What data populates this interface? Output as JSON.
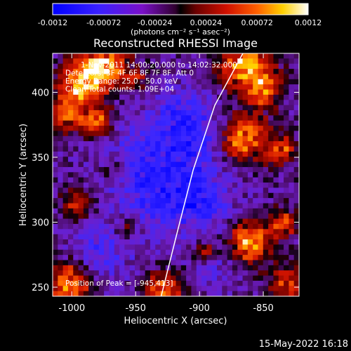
{
  "colorbar": {
    "tick_labels": [
      "-0.0012",
      "-0.00072",
      "-0.00024",
      "0.00024",
      "0.00072",
      "0.0012"
    ],
    "units_label": "(photons cm⁻² s⁻¹ asec⁻²)",
    "range": [
      -0.0012,
      0.0012
    ]
  },
  "title": "Reconstructed RHESSI Image",
  "info_lines": [
    "1-Nov-2011 14:00:20.000 to 14:02:32.000",
    "Detectors: 3F 4F 6F 8F 7F 8F, Att 0",
    "Energy Range: 25.0 - 50.0 keV",
    "Clean     Total counts: 1.09E+04"
  ],
  "peak_label": "Position of Peak = [-945,413]",
  "footer_date": "15-May-2022 16:18",
  "chart_data": {
    "type": "heatmap",
    "title": "Reconstructed RHESSI Image",
    "xlabel": "Heliocentric X (arcsec)",
    "ylabel": "Heliocentric Y (arcsec)",
    "x_ticks": [
      "-1000",
      "-950",
      "-900",
      "-850"
    ],
    "y_ticks": [
      "250",
      "300",
      "350",
      "400"
    ],
    "x_tick_values": [
      -1000,
      -950,
      -900,
      -850
    ],
    "y_tick_values": [
      250,
      300,
      350,
      400
    ],
    "xlim": [
      -1015,
      -822
    ],
    "ylim": [
      243,
      430
    ],
    "limb": [
      [
        -930,
        243
      ],
      [
        -918,
        290
      ],
      [
        -905,
        340
      ],
      [
        -888,
        390
      ],
      [
        -866,
        430
      ]
    ],
    "grid": false
  }
}
